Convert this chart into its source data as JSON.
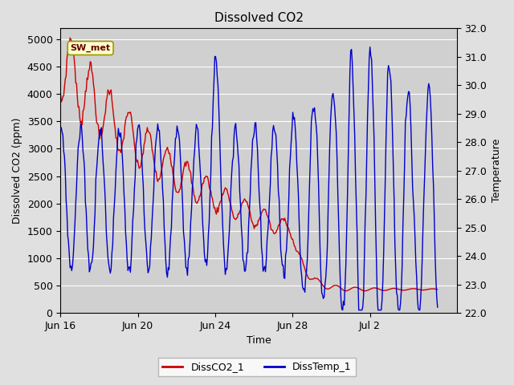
{
  "title": "Dissolved CO2",
  "xlabel": "Time",
  "ylabel_left": "Dissolved CO2 (ppm)",
  "ylabel_right": "Temperature",
  "legend_label1": "DissCO2_1",
  "legend_label2": "DissTemp_1",
  "annotation": "SW_met",
  "ylim_left": [
    0,
    5200
  ],
  "ylim_right": [
    22.0,
    32.0
  ],
  "yticks_left": [
    0,
    500,
    1000,
    1500,
    2000,
    2500,
    3000,
    3500,
    4000,
    4500,
    5000
  ],
  "yticks_right": [
    22.0,
    23.0,
    24.0,
    25.0,
    26.0,
    27.0,
    28.0,
    29.0,
    30.0,
    31.0,
    32.0
  ],
  "fig_bg_color": "#e0e0e0",
  "plot_bg_color": "#d0d0d0",
  "color_co2": "#cc0000",
  "color_temp": "#0000cc",
  "line_width": 1.0,
  "xtick_labels": [
    "Jun 16",
    "Jun 20",
    "Jun 24",
    "Jun 28",
    "Jul 2"
  ],
  "xtick_positions": [
    0,
    4,
    8,
    12,
    16
  ],
  "xlim": [
    0,
    20.5
  ]
}
